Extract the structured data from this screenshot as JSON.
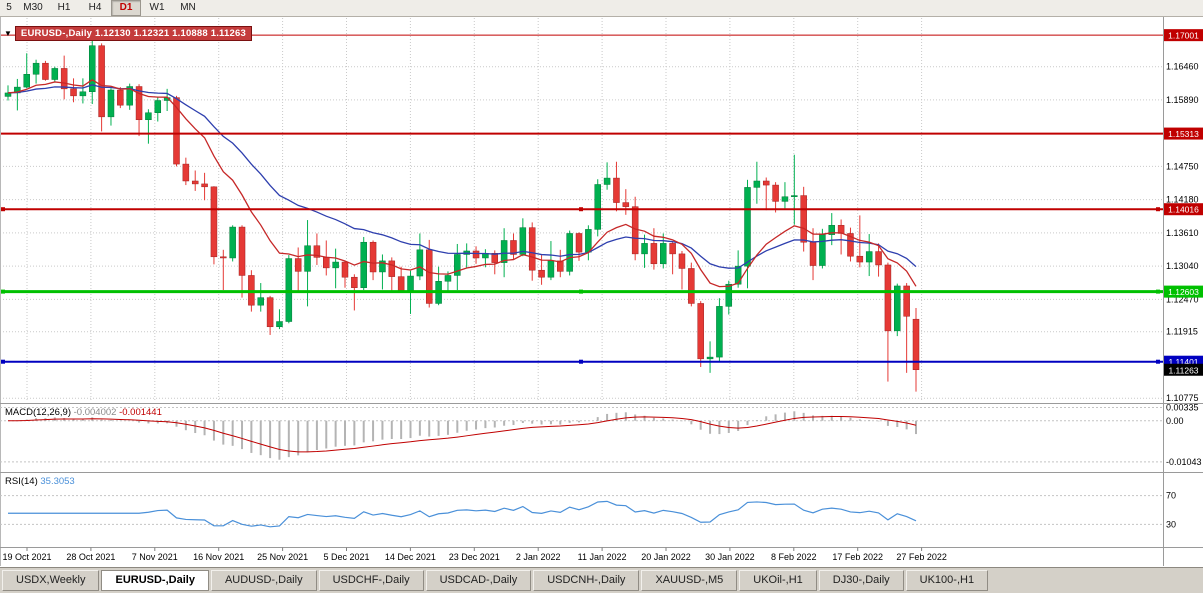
{
  "toolbar": {
    "timeframes": [
      "5",
      "M30",
      "H1",
      "H4",
      "D1",
      "W1",
      "MN"
    ],
    "active": "D1"
  },
  "chart": {
    "symbol_label": "EURUSD-,Daily 1.12130 1.12321 1.10888 1.11263",
    "ohlc": {
      "open": "1.12130",
      "high": "1.12321",
      "low": "1.10888",
      "close": "1.11263"
    }
  },
  "chart_data": {
    "type": "candlestick",
    "symbol": "EURUSD-,Daily",
    "title": "EURUSD-,Daily",
    "y_ticks": [
      "1.16460",
      "1.15890",
      "1.14750",
      "1.14180",
      "1.13610",
      "1.13040",
      "1.12470",
      "1.11915",
      "1.10775"
    ],
    "date_labels": [
      "19 Oct 2021",
      "28 Oct 2021",
      "7 Nov 2021",
      "16 Nov 2021",
      "25 Nov 2021",
      "5 Dec 2021",
      "14 Dec 2021",
      "23 Dec 2021",
      "2 Jan 2022",
      "11 Jan 2022",
      "20 Jan 2022",
      "30 Jan 2022",
      "8 Feb 2022",
      "17 Feb 2022",
      "27 Feb 2022"
    ],
    "levels": [
      {
        "price": "1.17001",
        "color": "#c00000",
        "width": 1,
        "selected": false
      },
      {
        "price": "1.15313",
        "color": "#c00000",
        "width": 2,
        "selected": false
      },
      {
        "price": "1.14016",
        "color": "#c00000",
        "width": 2,
        "selected": true
      },
      {
        "price": "1.12603",
        "color": "#00c000",
        "width": 3,
        "selected": true
      },
      {
        "price": "1.11401",
        "color": "#0000c0",
        "width": 2,
        "selected": true
      }
    ],
    "current_price": "1.11263",
    "current_price_bg": "#000000",
    "price_range": {
      "top": 1.17295,
      "bottom": 1.1071
    },
    "up_color": "#00b050",
    "down_color": "#e53935",
    "moving_averages": [
      {
        "period": 12,
        "color": "#c62828"
      },
      {
        "period": 26,
        "color": "#2e3fae"
      }
    ],
    "macd": {
      "label": "MACD(12,26,9)",
      "params": [
        12,
        26,
        9
      ],
      "values_text": [
        "-0.004002",
        "-0.001441"
      ],
      "axis": [
        "0.00335",
        "0.00",
        "-0.01043"
      ],
      "histogram_color": "#b4b4b4",
      "signal_color": "#c00000"
    },
    "rsi": {
      "label": "RSI(14)",
      "period": 14,
      "value_text": "35.3053",
      "levels": [
        "70",
        "30"
      ],
      "line_color": "#4a90d9"
    },
    "candles": [
      [
        1.1595,
        1.1614,
        1.1588,
        1.1601
      ],
      [
        1.1601,
        1.1625,
        1.1571,
        1.1611
      ],
      [
        1.1611,
        1.1669,
        1.1609,
        1.1633
      ],
      [
        1.1633,
        1.1658,
        1.1617,
        1.1652
      ],
      [
        1.1652,
        1.1656,
        1.1622,
        1.1624
      ],
      [
        1.1624,
        1.1646,
        1.162,
        1.1643
      ],
      [
        1.1643,
        1.1665,
        1.159,
        1.1608
      ],
      [
        1.1608,
        1.1626,
        1.1585,
        1.1596
      ],
      [
        1.1596,
        1.1626,
        1.1583,
        1.1603
      ],
      [
        1.1603,
        1.1692,
        1.1582,
        1.1682
      ],
      [
        1.1682,
        1.1686,
        1.1535,
        1.156
      ],
      [
        1.156,
        1.1609,
        1.1545,
        1.1606
      ],
      [
        1.1606,
        1.1611,
        1.1575,
        1.158
      ],
      [
        1.158,
        1.1617,
        1.1572,
        1.1612
      ],
      [
        1.1612,
        1.1616,
        1.1527,
        1.1555
      ],
      [
        1.1555,
        1.1573,
        1.1514,
        1.1567
      ],
      [
        1.1567,
        1.1594,
        1.1552,
        1.1588
      ],
      [
        1.1588,
        1.1608,
        1.157,
        1.1593
      ],
      [
        1.1593,
        1.1596,
        1.1475,
        1.1479
      ],
      [
        1.1479,
        1.149,
        1.1443,
        1.145
      ],
      [
        1.145,
        1.1468,
        1.1433,
        1.1445
      ],
      [
        1.1445,
        1.1464,
        1.1417,
        1.144
      ],
      [
        1.144,
        1.1441,
        1.1307,
        1.132
      ],
      [
        1.132,
        1.1332,
        1.1263,
        1.1318
      ],
      [
        1.1318,
        1.1374,
        1.1312,
        1.1371
      ],
      [
        1.1371,
        1.1374,
        1.125,
        1.1288
      ],
      [
        1.1288,
        1.1297,
        1.1226,
        1.1237
      ],
      [
        1.1237,
        1.1275,
        1.1226,
        1.125
      ],
      [
        1.125,
        1.1253,
        1.1186,
        1.12
      ],
      [
        1.12,
        1.123,
        1.1196,
        1.1209
      ],
      [
        1.1209,
        1.1323,
        1.1206,
        1.1317
      ],
      [
        1.1317,
        1.1336,
        1.1258,
        1.1295
      ],
      [
        1.1295,
        1.1383,
        1.1235,
        1.1339
      ],
      [
        1.1339,
        1.136,
        1.1306,
        1.1319
      ],
      [
        1.1319,
        1.1348,
        1.1288,
        1.1301
      ],
      [
        1.1301,
        1.1334,
        1.1266,
        1.1311
      ],
      [
        1.1311,
        1.1312,
        1.1267,
        1.1285
      ],
      [
        1.1285,
        1.129,
        1.1228,
        1.1267
      ],
      [
        1.1267,
        1.1354,
        1.1263,
        1.1345
      ],
      [
        1.1345,
        1.1348,
        1.128,
        1.1294
      ],
      [
        1.1294,
        1.1324,
        1.1264,
        1.1313
      ],
      [
        1.1313,
        1.1319,
        1.126,
        1.1286
      ],
      [
        1.1286,
        1.1303,
        1.1258,
        1.1262
      ],
      [
        1.1262,
        1.1296,
        1.1222,
        1.1287
      ],
      [
        1.1287,
        1.136,
        1.128,
        1.1332
      ],
      [
        1.1332,
        1.1349,
        1.1233,
        1.124
      ],
      [
        1.124,
        1.1303,
        1.1237,
        1.1278
      ],
      [
        1.1278,
        1.1295,
        1.1262,
        1.1288
      ],
      [
        1.1288,
        1.1342,
        1.1263,
        1.1324
      ],
      [
        1.1324,
        1.1343,
        1.13,
        1.133
      ],
      [
        1.133,
        1.1338,
        1.1308,
        1.1318
      ],
      [
        1.1318,
        1.1333,
        1.1302,
        1.1326
      ],
      [
        1.1326,
        1.1331,
        1.129,
        1.131
      ],
      [
        1.131,
        1.1369,
        1.1285,
        1.1348
      ],
      [
        1.1348,
        1.136,
        1.1315,
        1.1324
      ],
      [
        1.1324,
        1.1386,
        1.1321,
        1.137
      ],
      [
        1.137,
        1.1379,
        1.1279,
        1.1297
      ],
      [
        1.1297,
        1.1323,
        1.1272,
        1.1285
      ],
      [
        1.1285,
        1.1347,
        1.128,
        1.1313
      ],
      [
        1.1313,
        1.1332,
        1.1285,
        1.1295
      ],
      [
        1.1295,
        1.1365,
        1.1288,
        1.136
      ],
      [
        1.136,
        1.1362,
        1.1313,
        1.1328
      ],
      [
        1.1328,
        1.1374,
        1.1314,
        1.1367
      ],
      [
        1.1367,
        1.1453,
        1.1355,
        1.1444
      ],
      [
        1.1444,
        1.1482,
        1.1435,
        1.1455
      ],
      [
        1.1455,
        1.1483,
        1.1398,
        1.1413
      ],
      [
        1.1413,
        1.1436,
        1.1392,
        1.1406
      ],
      [
        1.1406,
        1.1423,
        1.1314,
        1.1325
      ],
      [
        1.1325,
        1.1358,
        1.1301,
        1.1343
      ],
      [
        1.1343,
        1.1369,
        1.1298,
        1.1308
      ],
      [
        1.1308,
        1.136,
        1.13,
        1.1343
      ],
      [
        1.1343,
        1.1345,
        1.129,
        1.1325
      ],
      [
        1.1325,
        1.133,
        1.1264,
        1.13
      ],
      [
        1.13,
        1.131,
        1.1235,
        1.124
      ],
      [
        1.124,
        1.1244,
        1.1131,
        1.1145
      ],
      [
        1.1145,
        1.1175,
        1.1121,
        1.1148
      ],
      [
        1.1148,
        1.1249,
        1.1141,
        1.1235
      ],
      [
        1.1235,
        1.1279,
        1.1221,
        1.1273
      ],
      [
        1.1273,
        1.1331,
        1.1267,
        1.1304
      ],
      [
        1.1304,
        1.1452,
        1.1266,
        1.1439
      ],
      [
        1.1439,
        1.1483,
        1.1411,
        1.145
      ],
      [
        1.145,
        1.1456,
        1.14,
        1.1443
      ],
      [
        1.1443,
        1.1448,
        1.1396,
        1.1415
      ],
      [
        1.1415,
        1.1448,
        1.1403,
        1.1423
      ],
      [
        1.1423,
        1.1495,
        1.1375,
        1.1425
      ],
      [
        1.1425,
        1.144,
        1.1329,
        1.1345
      ],
      [
        1.1345,
        1.1369,
        1.128,
        1.1305
      ],
      [
        1.1305,
        1.1368,
        1.13,
        1.1358
      ],
      [
        1.1358,
        1.1395,
        1.134,
        1.1374
      ],
      [
        1.1374,
        1.1384,
        1.1324,
        1.136
      ],
      [
        1.136,
        1.137,
        1.1312,
        1.1321
      ],
      [
        1.1321,
        1.1391,
        1.1302,
        1.1311
      ],
      [
        1.1311,
        1.1359,
        1.1287,
        1.1329
      ],
      [
        1.1329,
        1.1343,
        1.1286,
        1.1306
      ],
      [
        1.1306,
        1.131,
        1.1106,
        1.1193
      ],
      [
        1.1193,
        1.1274,
        1.1184,
        1.127
      ],
      [
        1.127,
        1.1275,
        1.1121,
        1.1218
      ],
      [
        1.1213,
        1.12321,
        1.10888,
        1.11263
      ]
    ]
  },
  "tabs": {
    "active_index": 1,
    "items": [
      "USDX,Weekly",
      "EURUSD-,Daily",
      "AUDUSD-,Daily",
      "USDCHF-,Daily",
      "USDCAD-,Daily",
      "USDCNH-,Daily",
      "XAUUSD-,M5",
      "UKOil-,H1",
      "DJ30-,Daily",
      "UK100-,H1"
    ]
  }
}
